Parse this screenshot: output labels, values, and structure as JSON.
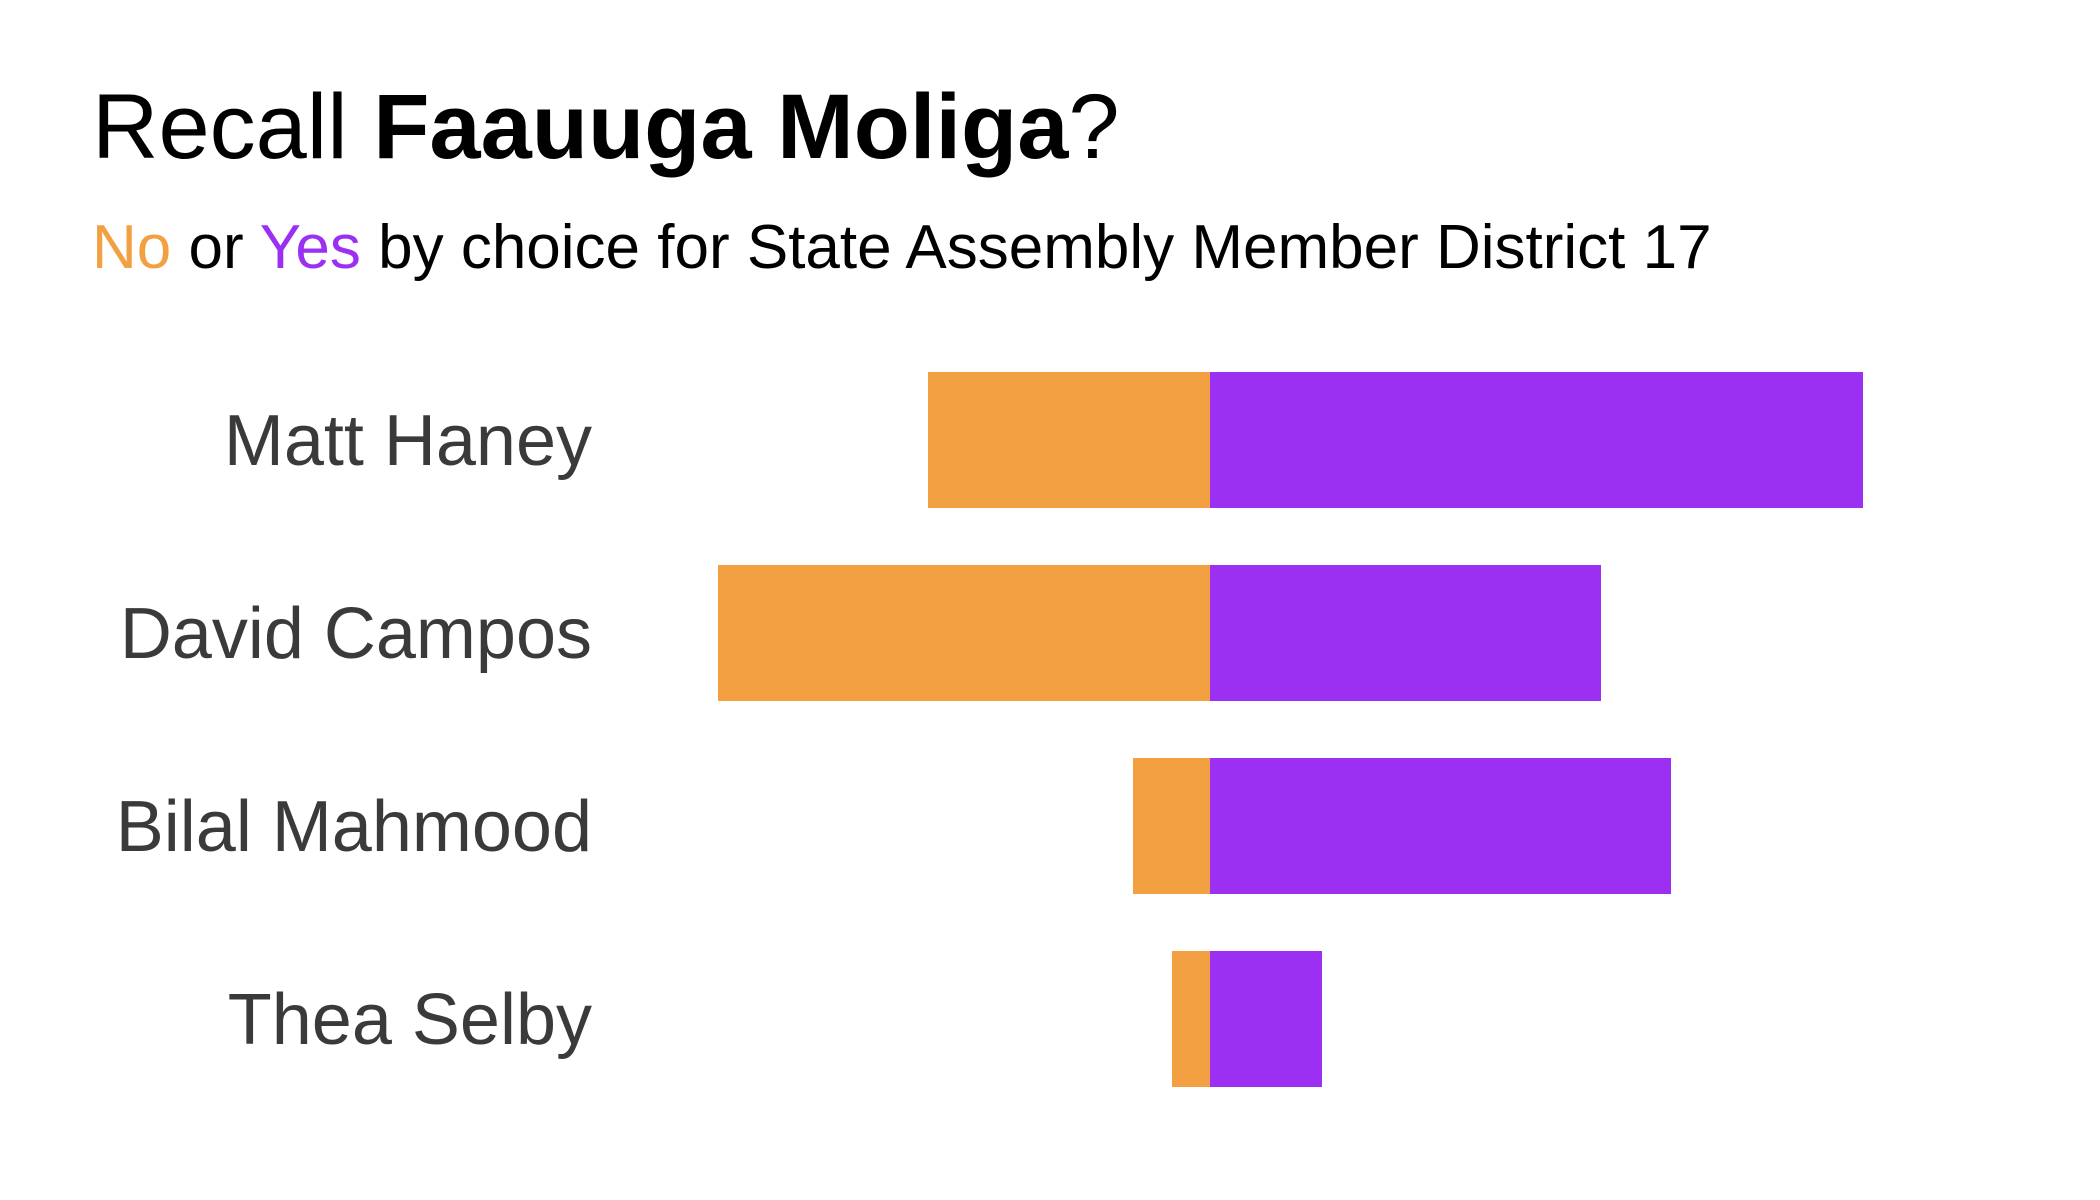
{
  "title": {
    "prefix": "Recall ",
    "name": "Faauuga Moliga",
    "suffix": "?"
  },
  "subtitle": {
    "no_word": "No",
    "or_word": " or ",
    "yes_word": "Yes",
    "rest": " by choice for State Assembly Member District 17"
  },
  "colors": {
    "no": "#F2A041",
    "yes": "#9B30F2"
  },
  "chart_data": {
    "type": "bar",
    "orientation": "horizontal-diverging",
    "categories": [
      "Matt Haney",
      "David Campos",
      "Bilal Mahmood",
      "Thea Selby"
    ],
    "series": [
      {
        "name": "No",
        "values": [
          282,
          492,
          77,
          38
        ]
      },
      {
        "name": "Yes",
        "values": [
          653,
          391,
          461,
          112
        ]
      }
    ],
    "xlim": [
      -492,
      653
    ],
    "grid": false
  }
}
